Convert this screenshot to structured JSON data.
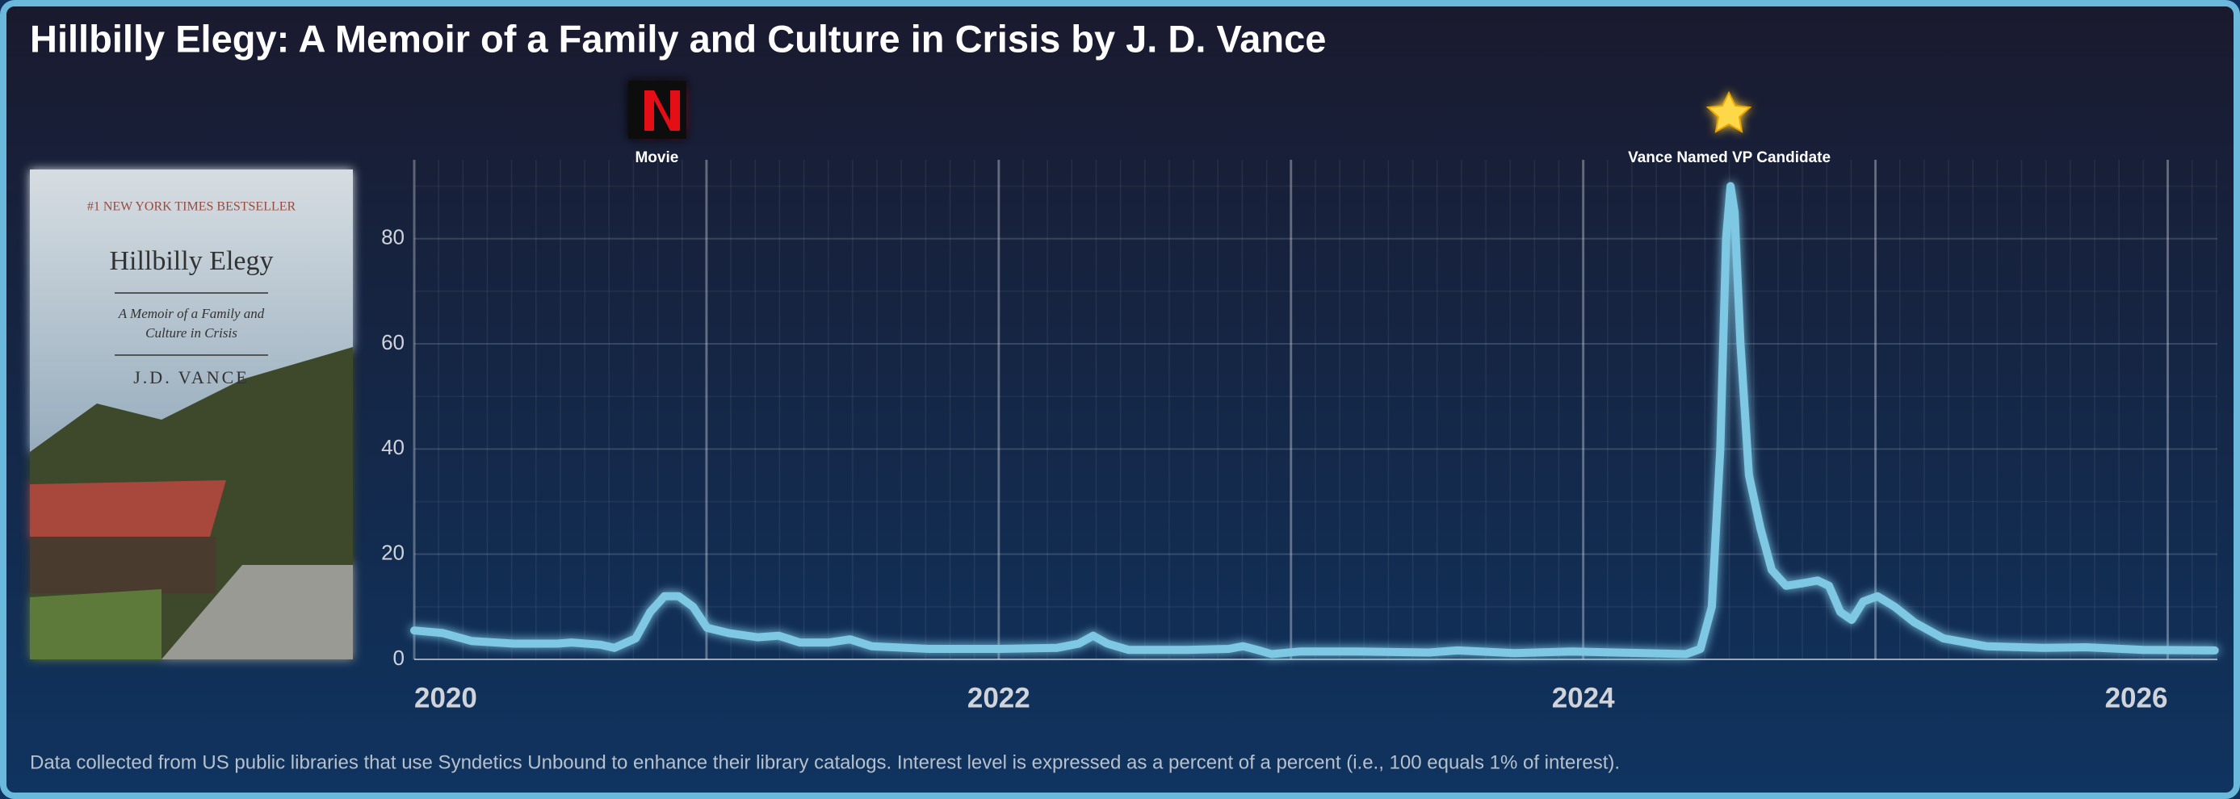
{
  "chart_data": {
    "type": "line",
    "title": "Hillbilly Elegy: A Memoir of a Family and Culture in Crisis by J. D. Vance",
    "caption": "Data collected from US public libraries that use Syndetics Unbound to enhance their library catalogs. Interest level is expressed as a percent of a percent (i.e., 100 equals 1% of interest).",
    "xlim": [
      2020,
      2026.17
    ],
    "xticks": [
      2020,
      2022,
      2024,
      2026
    ],
    "ylim": [
      0,
      95
    ],
    "yticks": [
      0,
      20,
      40,
      60,
      80
    ],
    "grid": true,
    "color": "#7ec8e3",
    "annotations": [
      {
        "x": 2020.83,
        "label": "Movie"
      },
      {
        "x": 2024.5,
        "label": "Vance Named VP Candidate"
      }
    ],
    "x": [
      2020.0,
      2020.098,
      2020.196,
      2020.342,
      2020.489,
      2020.538,
      2020.636,
      2020.685,
      2020.758,
      2020.807,
      2020.856,
      2020.905,
      2020.954,
      2021.002,
      2021.076,
      2021.174,
      2021.247,
      2021.32,
      2021.418,
      2021.491,
      2021.565,
      2021.76,
      2022.005,
      2022.2,
      2022.274,
      2022.323,
      2022.372,
      2022.445,
      2022.641,
      2022.787,
      2022.836,
      2022.885,
      2022.934,
      2023.032,
      2023.227,
      2023.472,
      2023.57,
      2023.765,
      2023.961,
      2024.205,
      2024.352,
      2024.401,
      2024.44,
      2024.469,
      2024.489,
      2024.504,
      2024.518,
      2024.538,
      2024.567,
      2024.606,
      2024.645,
      2024.694,
      2024.753,
      2024.802,
      2024.841,
      2024.88,
      2024.919,
      2024.958,
      2025.007,
      2025.066,
      2025.134,
      2025.232,
      2025.379,
      2025.575,
      2025.721,
      2025.917,
      2026.161
    ],
    "values": [
      5.5,
      5,
      3.5,
      3,
      3,
      3.2,
      2.8,
      2.2,
      4,
      9,
      12,
      12,
      10,
      6,
      5,
      4.2,
      4.5,
      3.2,
      3.2,
      3.8,
      2.5,
      2,
      2,
      2.2,
      3,
      4.5,
      3,
      1.8,
      1.8,
      2,
      2.5,
      1.8,
      1,
      1.5,
      1.5,
      1.3,
      1.7,
      1.2,
      1.5,
      1.2,
      1,
      2,
      10,
      40,
      80,
      90,
      85,
      60,
      35,
      25,
      17,
      14,
      14.5,
      15,
      14,
      9,
      7.5,
      11,
      12,
      10,
      7,
      4,
      2.5,
      2.2,
      2.3,
      1.8,
      1.7
    ]
  },
  "cover": {
    "banner": "#1 NEW YORK TIMES BESTSELLER",
    "title": "Hillbilly Elegy",
    "subtitle_lines": [
      "A Memoir of a Family and",
      "Culture in Crisis"
    ],
    "author": "J.D. VANCE"
  }
}
